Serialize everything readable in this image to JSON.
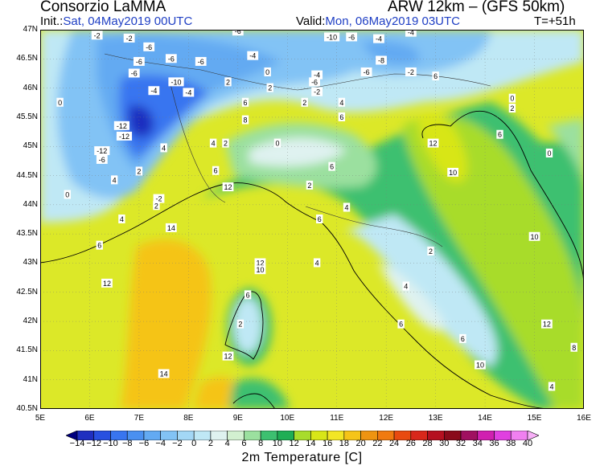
{
  "header": {
    "org": "Consorzio LaMMA",
    "model": "ARW 12km – (GFS 50km)",
    "init_label": "Init.:",
    "init_value": "Sat, 04May2019 00UTC",
    "valid_label": "Valid:",
    "valid_value": "Mon, 06May2019 03UTC",
    "forecast_step": "T=+51h"
  },
  "map": {
    "lat_labels": [
      "47N",
      "46.5N",
      "46N",
      "45.5N",
      "45N",
      "44.5N",
      "44N",
      "43.5N",
      "43N",
      "42.5N",
      "42N",
      "41.5N",
      "41N",
      "40.5N"
    ],
    "lon_labels": [
      "5E",
      "6E",
      "7E",
      "8E",
      "9E",
      "10E",
      "11E",
      "12E",
      "13E",
      "14E",
      "15E",
      "16E"
    ],
    "field_labels": [
      {
        "text": "-2",
        "lon": 6.15,
        "lat": 46.9
      },
      {
        "text": "-2",
        "lon": 6.8,
        "lat": 46.85
      },
      {
        "text": "-6",
        "lon": 7.2,
        "lat": 46.7
      },
      {
        "text": "-6",
        "lon": 7.0,
        "lat": 46.45
      },
      {
        "text": "-6",
        "lon": 7.65,
        "lat": 46.5
      },
      {
        "text": "-6",
        "lon": 8.25,
        "lat": 46.45
      },
      {
        "text": "-6",
        "lon": 6.9,
        "lat": 46.25
      },
      {
        "text": "-10",
        "lon": 7.75,
        "lat": 46.1
      },
      {
        "text": "-4",
        "lon": 8.0,
        "lat": 45.92
      },
      {
        "text": "-4",
        "lon": 7.3,
        "lat": 45.95
      },
      {
        "text": "0",
        "lon": 5.4,
        "lat": 45.75
      },
      {
        "text": "-12",
        "lon": 6.65,
        "lat": 45.35
      },
      {
        "text": "-12",
        "lon": 6.7,
        "lat": 45.17
      },
      {
        "text": "-12",
        "lon": 6.25,
        "lat": 44.92
      },
      {
        "text": "-6",
        "lon": 6.25,
        "lat": 44.77
      },
      {
        "text": "4",
        "lon": 7.5,
        "lat": 44.97
      },
      {
        "text": "-6",
        "lon": 9.0,
        "lat": 46.97
      },
      {
        "text": "-4",
        "lon": 9.3,
        "lat": 46.55
      },
      {
        "text": "2",
        "lon": 8.8,
        "lat": 46.1
      },
      {
        "text": "0",
        "lon": 9.6,
        "lat": 46.27
      },
      {
        "text": "2",
        "lon": 9.65,
        "lat": 46.0
      },
      {
        "text": "-4",
        "lon": 10.6,
        "lat": 46.22
      },
      {
        "text": "-10",
        "lon": 10.9,
        "lat": 46.87
      },
      {
        "text": "-6",
        "lon": 11.3,
        "lat": 46.87
      },
      {
        "text": "-4",
        "lon": 11.85,
        "lat": 46.84
      },
      {
        "text": "-8",
        "lon": 11.9,
        "lat": 46.47
      },
      {
        "text": "-6",
        "lon": 11.6,
        "lat": 46.27
      },
      {
        "text": "-6",
        "lon": 10.55,
        "lat": 46.1
      },
      {
        "text": "-2",
        "lon": 10.6,
        "lat": 45.93
      },
      {
        "text": "-4",
        "lon": 12.5,
        "lat": 46.95
      },
      {
        "text": "-2",
        "lon": 12.5,
        "lat": 46.27
      },
      {
        "text": "6",
        "lon": 13.0,
        "lat": 46.2
      },
      {
        "text": "6",
        "lon": 9.15,
        "lat": 45.75
      },
      {
        "text": "8",
        "lon": 9.15,
        "lat": 45.45
      },
      {
        "text": "2",
        "lon": 10.35,
        "lat": 45.75
      },
      {
        "text": "6",
        "lon": 11.1,
        "lat": 45.5
      },
      {
        "text": "4",
        "lon": 11.1,
        "lat": 45.75
      },
      {
        "text": "0",
        "lon": 9.8,
        "lat": 45.05
      },
      {
        "text": "4",
        "lon": 8.5,
        "lat": 45.05
      },
      {
        "text": "2",
        "lon": 8.75,
        "lat": 45.05
      },
      {
        "text": "6",
        "lon": 8.55,
        "lat": 44.58
      },
      {
        "text": "2",
        "lon": 7.0,
        "lat": 44.57
      },
      {
        "text": "4",
        "lon": 6.5,
        "lat": 44.42
      },
      {
        "text": "0",
        "lon": 5.55,
        "lat": 44.17
      },
      {
        "text": "-2",
        "lon": 7.4,
        "lat": 44.1
      },
      {
        "text": "2",
        "lon": 7.35,
        "lat": 43.98
      },
      {
        "text": "12",
        "lon": 8.8,
        "lat": 44.3
      },
      {
        "text": "2",
        "lon": 10.45,
        "lat": 44.33
      },
      {
        "text": "6",
        "lon": 10.65,
        "lat": 43.75
      },
      {
        "text": "4",
        "lon": 11.2,
        "lat": 43.95
      },
      {
        "text": "6",
        "lon": 10.9,
        "lat": 44.65
      },
      {
        "text": "12",
        "lon": 12.95,
        "lat": 45.05
      },
      {
        "text": "10",
        "lon": 13.35,
        "lat": 44.55
      },
      {
        "text": "2",
        "lon": 14.55,
        "lat": 45.65
      },
      {
        "text": "0",
        "lon": 14.55,
        "lat": 45.82
      },
      {
        "text": "6",
        "lon": 14.3,
        "lat": 45.2
      },
      {
        "text": "0",
        "lon": 15.3,
        "lat": 44.88
      },
      {
        "text": "10",
        "lon": 15.0,
        "lat": 43.45
      },
      {
        "text": "14",
        "lon": 7.65,
        "lat": 43.6
      },
      {
        "text": "4",
        "lon": 6.65,
        "lat": 43.75
      },
      {
        "text": "6",
        "lon": 6.2,
        "lat": 43.3
      },
      {
        "text": "12",
        "lon": 6.35,
        "lat": 42.65
      },
      {
        "text": "12",
        "lon": 9.45,
        "lat": 43.0
      },
      {
        "text": "10",
        "lon": 9.45,
        "lat": 42.88
      },
      {
        "text": "6",
        "lon": 9.2,
        "lat": 42.45
      },
      {
        "text": "2",
        "lon": 9.05,
        "lat": 41.95
      },
      {
        "text": "12",
        "lon": 8.8,
        "lat": 41.4
      },
      {
        "text": "14",
        "lon": 7.5,
        "lat": 41.1
      },
      {
        "text": "4",
        "lon": 10.6,
        "lat": 43.0
      },
      {
        "text": "2",
        "lon": 12.9,
        "lat": 43.2
      },
      {
        "text": "4",
        "lon": 12.4,
        "lat": 42.6
      },
      {
        "text": "6",
        "lon": 12.3,
        "lat": 41.95
      },
      {
        "text": "6",
        "lon": 13.55,
        "lat": 41.7
      },
      {
        "text": "12",
        "lon": 15.25,
        "lat": 41.95
      },
      {
        "text": "8",
        "lon": 15.8,
        "lat": 41.55
      },
      {
        "text": "10",
        "lon": 13.9,
        "lat": 41.25
      },
      {
        "text": "4",
        "lon": 15.35,
        "lat": 40.88
      }
    ]
  },
  "colorbar": {
    "title": "2m Temperature [C]",
    "levels": [
      "−14",
      "−12",
      "−10",
      "−8",
      "−6",
      "−4",
      "−2",
      "0",
      "2",
      "4",
      "6",
      "8",
      "10",
      "12",
      "14",
      "16",
      "18",
      "20",
      "22",
      "24",
      "26",
      "28",
      "30",
      "32",
      "34",
      "36",
      "38",
      "40"
    ],
    "colors": [
      "#000080",
      "#1f2fc0",
      "#2850e0",
      "#3875f0",
      "#4a90f0",
      "#63aaf2",
      "#82c3f5",
      "#a3d7f5",
      "#bfe8f5",
      "#dff2f0",
      "#d2f0d0",
      "#9be09f",
      "#3dc070",
      "#1fae55",
      "#a8dc2c",
      "#d8e618",
      "#f2e625",
      "#f5c418",
      "#ee9411",
      "#f07a10",
      "#e84a10",
      "#d8281b",
      "#b51020",
      "#8a0a1a",
      "#a01060",
      "#d020b0",
      "#e040e0",
      "#f080f0",
      "#f8b0f8"
    ]
  }
}
